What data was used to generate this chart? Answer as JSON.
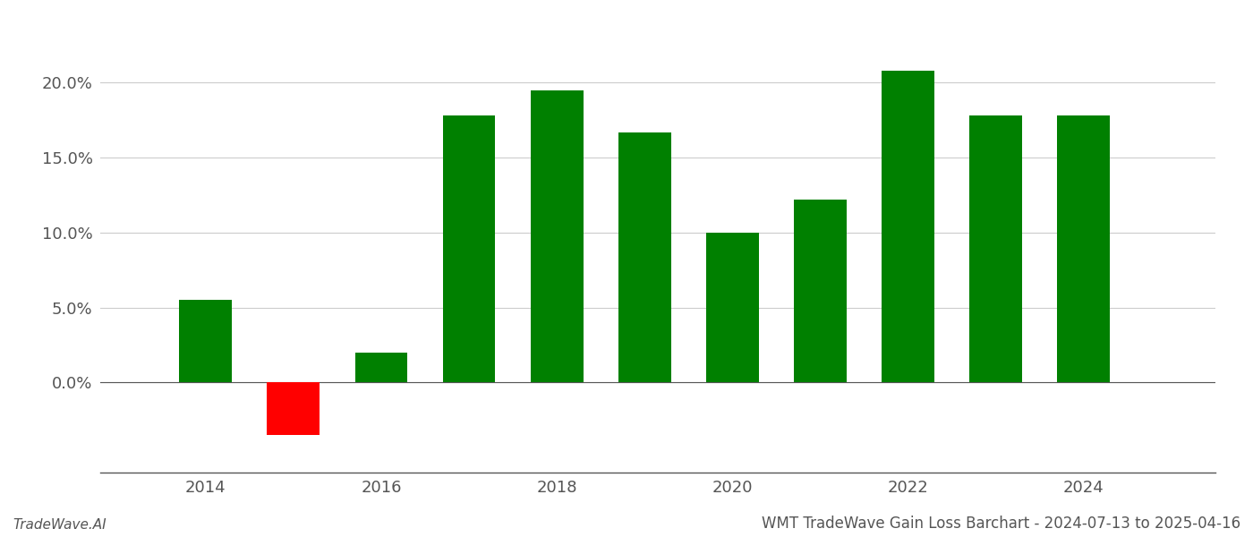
{
  "years": [
    2014,
    2015,
    2016,
    2017,
    2018,
    2019,
    2020,
    2021,
    2022,
    2023,
    2024
  ],
  "values": [
    5.5,
    -3.5,
    2.0,
    17.8,
    19.5,
    16.7,
    10.0,
    12.2,
    20.8,
    17.8,
    17.8
  ],
  "colors": [
    "#008000",
    "#ff0000",
    "#008000",
    "#008000",
    "#008000",
    "#008000",
    "#008000",
    "#008000",
    "#008000",
    "#008000",
    "#008000"
  ],
  "title": "WMT TradeWave Gain Loss Barchart - 2024-07-13 to 2025-04-16",
  "footer_left": "TradeWave.AI",
  "xlim_min": 2012.8,
  "xlim_max": 2025.5,
  "ylim_min": -6,
  "ylim_max": 23,
  "bar_width": 0.6,
  "background_color": "#ffffff",
  "grid_color": "#cccccc",
  "axis_color": "#555555",
  "title_fontsize": 12,
  "footer_fontsize": 11,
  "tick_fontsize": 13,
  "ytick_positions": [
    0.0,
    5.0,
    10.0,
    15.0,
    20.0
  ],
  "xtick_positions": [
    2014,
    2016,
    2018,
    2020,
    2022,
    2024
  ]
}
